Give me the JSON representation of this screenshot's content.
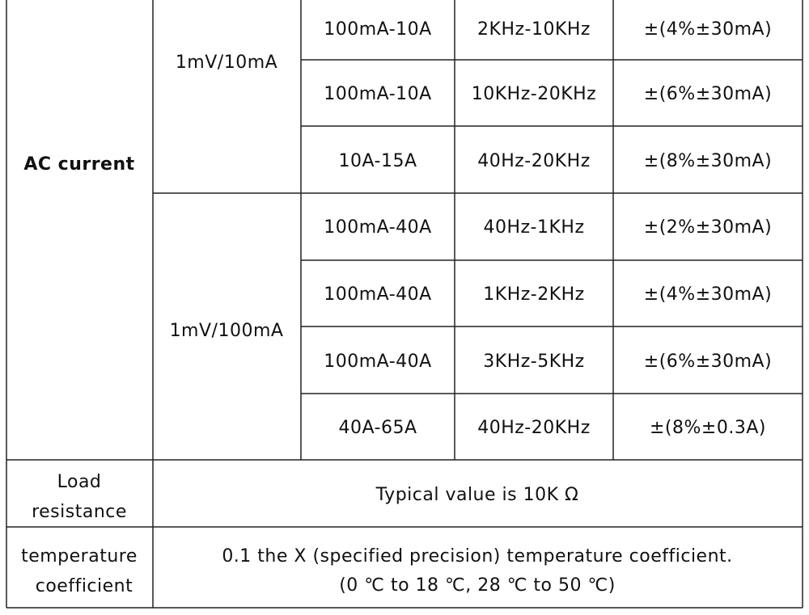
{
  "ac_current": {
    "label": "AC current",
    "groups": [
      {
        "ratio": "1mV/10mA",
        "rows": [
          [
            "100mA-10A",
            "2KHz-10KHz",
            "±(4%±30mA)"
          ],
          [
            "100mA-10A",
            "10KHz-20KHz",
            "±(6%±30mA)"
          ],
          [
            "10A-15A",
            "40Hz-20KHz",
            "±(8%±30mA)"
          ]
        ]
      },
      {
        "ratio": "1mV/100mA",
        "rows": [
          [
            "100mA-40A",
            "40Hz-1KHz",
            "±(2%±30mA)"
          ],
          [
            "100mA-40A",
            "1KHz-2KHz",
            "±(4%±30mA)"
          ],
          [
            "100mA-40A",
            "3KHz-5KHz",
            "±(6%±30mA)"
          ],
          [
            "40A-65A",
            "40Hz-20KHz",
            "±(8%±0.3A)"
          ]
        ]
      }
    ]
  },
  "load_resistance": {
    "label": [
      "Load",
      "resistance"
    ],
    "value": "Typical value is 10K Ω"
  },
  "temperature_coefficient": {
    "label": [
      "temperature",
      "coefficient"
    ],
    "lines": [
      "0.1 the X (specified precision) temperature coefficient.",
      "(0 ℃ to 18 ℃,  28 ℃ to 50 ℃)"
    ]
  }
}
